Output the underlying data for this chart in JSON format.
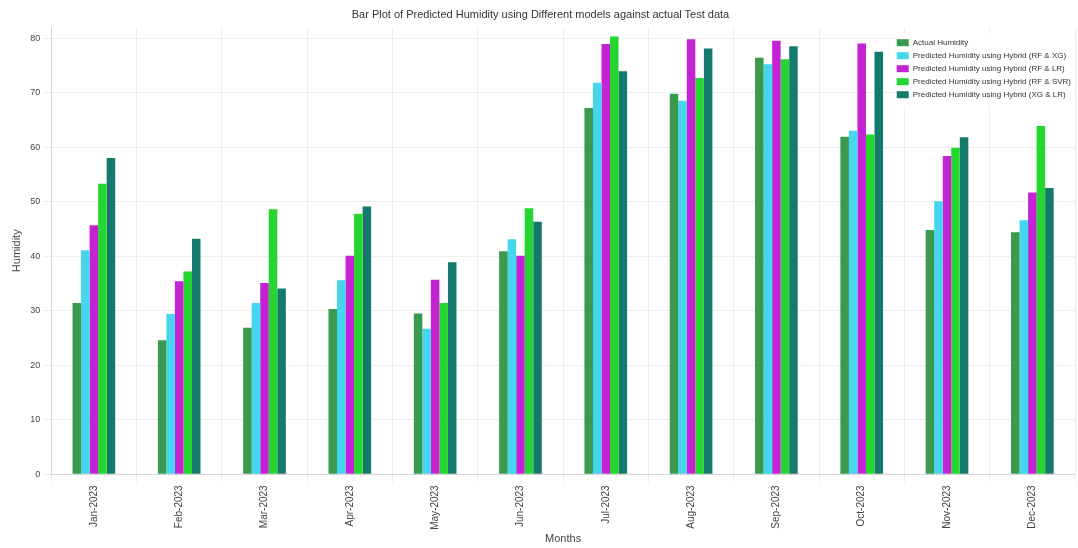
{
  "chart_data": {
    "type": "bar",
    "title": "Bar Plot of Predicted Humidity using Different models against actual Test data",
    "xlabel": "Months",
    "ylabel": "Humidity",
    "categories": [
      "Jan-2023",
      "Feb-2023",
      "Mar-2023",
      "Apr-2023",
      "May-2023",
      "Jun-2023",
      "Jul-2023",
      "Aug-2023",
      "Sep-2023",
      "Oct-2023",
      "Nov-2023",
      "Dec-2023"
    ],
    "series": [
      {
        "name": "Actual Humidity",
        "color": "#3a9a4e",
        "values": [
          31.4,
          24.6,
          26.9,
          30.3,
          29.5,
          40.9,
          67.2,
          69.8,
          76.4,
          61.9,
          44.8,
          44.4
        ]
      },
      {
        "name": "Predicted Humidity using Hybrid (RF & XG)",
        "color": "#44d6ee",
        "values": [
          41.1,
          29.4,
          31.4,
          35.6,
          26.7,
          43.1,
          71.8,
          68.5,
          75.2,
          63.0,
          50.1,
          46.6
        ]
      },
      {
        "name": "Predicted Humidity using Hybrid (RF & LR)",
        "color": "#c423d4",
        "values": [
          45.7,
          35.4,
          35.1,
          40.1,
          35.7,
          40.1,
          78.9,
          79.8,
          79.5,
          79.0,
          58.4,
          51.7
        ]
      },
      {
        "name": "Predicted Humidity using Hybrid (RF & SVR)",
        "color": "#26d630",
        "values": [
          53.3,
          37.2,
          48.6,
          47.8,
          31.4,
          48.8,
          80.3,
          72.7,
          76.1,
          62.3,
          59.9,
          63.9
        ]
      },
      {
        "name": "Predicted Humidity using Hybrid (XG & LR)",
        "color": "#147a6c",
        "values": [
          58.0,
          43.2,
          34.1,
          49.1,
          38.9,
          46.3,
          73.9,
          78.1,
          78.5,
          77.5,
          61.8,
          52.5
        ]
      }
    ],
    "ylim": [
      0,
      82
    ],
    "yticks": [
      0,
      10,
      20,
      30,
      40,
      50,
      60,
      70,
      80
    ],
    "grid": true,
    "legend": "top right"
  }
}
